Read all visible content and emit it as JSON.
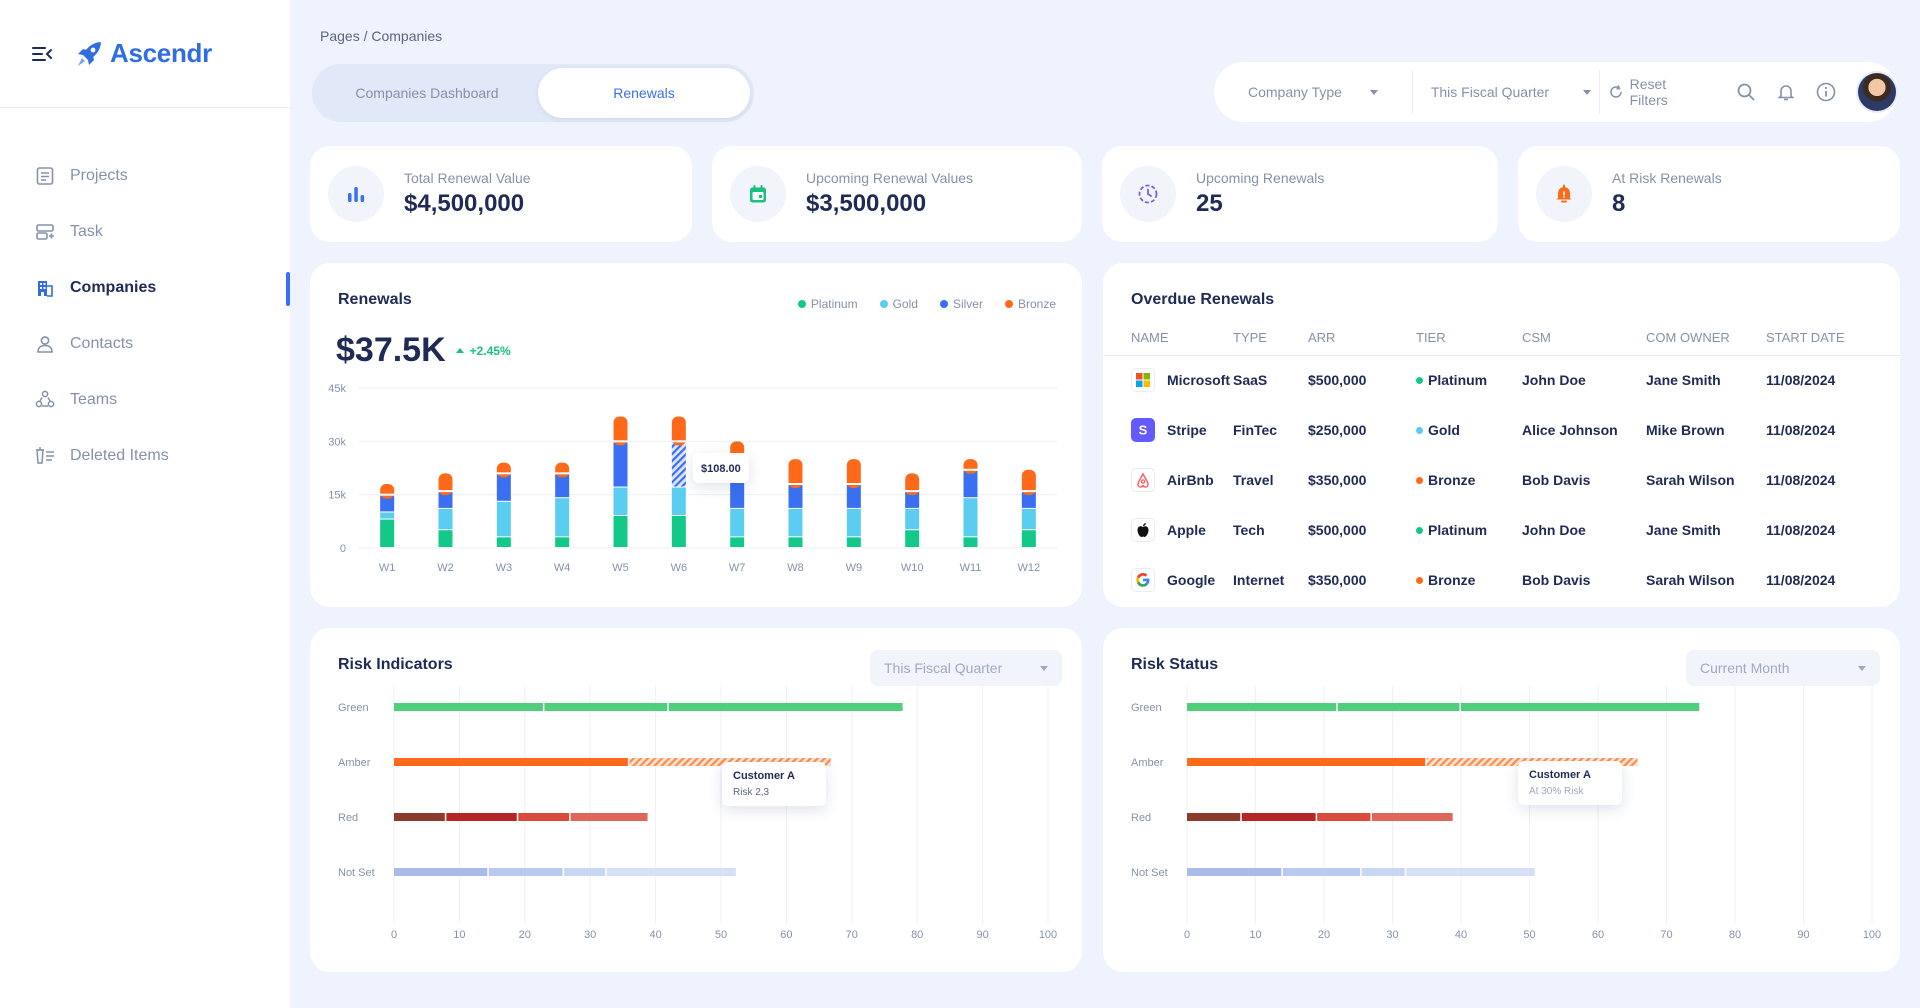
{
  "brand": {
    "name": "Ascendr"
  },
  "sidebar": {
    "items": [
      {
        "label": "Projects",
        "icon": "document-icon",
        "active": false
      },
      {
        "label": "Task",
        "icon": "task-icon",
        "active": false
      },
      {
        "label": "Companies",
        "icon": "building-icon",
        "active": true
      },
      {
        "label": "Contacts",
        "icon": "user-icon",
        "active": false
      },
      {
        "label": "Teams",
        "icon": "teams-icon",
        "active": false
      },
      {
        "label": "Deleted Items",
        "icon": "trash-list-icon",
        "active": false
      }
    ]
  },
  "header": {
    "breadcrumb": "Pages / Companies",
    "tabs": [
      {
        "label": "Companies Dashboard"
      },
      {
        "label": "Renewals"
      }
    ],
    "active_tab": "Renewals",
    "filters": {
      "company_type": "Company Type",
      "period": "This Fiscal Quarter",
      "reset": "Reset Filters"
    }
  },
  "stats": [
    {
      "label": "Total Renewal Value",
      "value": "$4,500,000",
      "icon": "bar-chart-icon",
      "color": "#3b6ff2"
    },
    {
      "label": "Upcoming Renewal Values",
      "value": "$3,500,000",
      "icon": "calendar-icon",
      "color": "#18c27c"
    },
    {
      "label": "Upcoming Renewals",
      "value": "25",
      "icon": "clock-icon",
      "color": "#7a5cf0"
    },
    {
      "label": "At Risk Renewals",
      "value": "8",
      "icon": "bell-icon",
      "color": "#ff6a1a"
    }
  ],
  "renewals": {
    "title": "Renewals",
    "total": "$37.5K",
    "delta": "+2.45%",
    "tooltip": "$108.00",
    "legend": [
      {
        "name": "Platinum",
        "color": "#12c98a"
      },
      {
        "name": "Gold",
        "color": "#5bcdf0"
      },
      {
        "name": "Silver",
        "color": "#3b6ff2"
      },
      {
        "name": "Bronze",
        "color": "#ff6a1a"
      }
    ]
  },
  "chart_data": [
    {
      "type": "bar",
      "stacked": true,
      "title": "Renewals",
      "categories": [
        "W1",
        "W2",
        "W3",
        "W4",
        "W5",
        "W6",
        "W7",
        "W8",
        "W9",
        "W10",
        "W11",
        "W12"
      ],
      "ytick_labels": [
        "0",
        "15k",
        "30k",
        "45k"
      ],
      "ylim": [
        0,
        45000
      ],
      "series": [
        {
          "name": "Platinum",
          "values": [
            8000,
            5000,
            3000,
            3000,
            9000,
            9000,
            3000,
            3000,
            3000,
            5000,
            3000,
            5000
          ]
        },
        {
          "name": "Gold",
          "values": [
            2000,
            6000,
            10000,
            11000,
            8000,
            8000,
            8000,
            8000,
            8000,
            6000,
            11000,
            6000
          ]
        },
        {
          "name": "Silver",
          "values": [
            5000,
            5000,
            8000,
            7000,
            13000,
            13000,
            13000,
            7000,
            7000,
            5000,
            8000,
            5000
          ]
        },
        {
          "name": "Bronze",
          "values": [
            3000,
            5000,
            3000,
            3000,
            7000,
            7000,
            6000,
            7000,
            7000,
            5000,
            3000,
            6000
          ]
        }
      ],
      "grid": true
    },
    {
      "type": "bar",
      "orientation": "horizontal",
      "title": "Risk Indicators",
      "categories": [
        "Green",
        "Amber",
        "Red",
        "Not Set"
      ],
      "xtick_labels": [
        "0",
        "10",
        "20",
        "30",
        "40",
        "50",
        "60",
        "70",
        "80",
        "90",
        "100"
      ],
      "xlim": [
        0,
        100
      ],
      "segments": [
        [
          23,
          19,
          36
        ],
        [
          36,
          31
        ],
        [
          8,
          11,
          8,
          12
        ],
        [
          14.5,
          11.5,
          6.5,
          20
        ]
      ],
      "tooltip": {
        "title": "Customer A",
        "subtitle": "Risk  2,3"
      }
    },
    {
      "type": "bar",
      "orientation": "horizontal",
      "title": "Risk Status",
      "categories": [
        "Green",
        "Amber",
        "Red",
        "Not Set"
      ],
      "xtick_labels": [
        "0",
        "10",
        "20",
        "30",
        "40",
        "50",
        "60",
        "70",
        "80",
        "90",
        "100"
      ],
      "xlim": [
        0,
        100
      ],
      "segments": [
        [
          22,
          18,
          35
        ],
        [
          35,
          31
        ],
        [
          8,
          11,
          8,
          12
        ],
        [
          14,
          11.5,
          6.5,
          19
        ]
      ],
      "tooltip": {
        "title": "Customer A",
        "subtitle": "At 30% Risk"
      }
    }
  ],
  "overdue": {
    "title": "Overdue Renewals",
    "columns": [
      "NAME",
      "TYPE",
      "ARR",
      "TIER",
      "CSM",
      "COM OWNER",
      "START DATE"
    ],
    "rows": [
      {
        "name": "Microsoft",
        "type": "SaaS",
        "arr": "$500,000",
        "tier": "Platinum",
        "tier_color": "#12c98a",
        "csm": "John Doe",
        "owner": "Jane Smith",
        "start": "11/08/2024",
        "logo": "microsoft-logo-icon"
      },
      {
        "name": "Stripe",
        "type": "FinTec",
        "arr": "$250,000",
        "tier": "Gold",
        "tier_color": "#5bcdf0",
        "csm": "Alice Johnson",
        "owner": "Mike Brown",
        "start": "11/08/2024",
        "logo": "stripe-logo-icon"
      },
      {
        "name": "AirBnb",
        "type": "Travel",
        "arr": "$350,000",
        "tier": "Bronze",
        "tier_color": "#ff6a1a",
        "csm": "Bob Davis",
        "owner": "Sarah Wilson",
        "start": "11/08/2024",
        "logo": "airbnb-logo-icon"
      },
      {
        "name": "Apple",
        "type": "Tech",
        "arr": "$500,000",
        "tier": "Platinum",
        "tier_color": "#12c98a",
        "csm": "John Doe",
        "owner": "Jane Smith",
        "start": "11/08/2024",
        "logo": "apple-logo-icon"
      },
      {
        "name": "Google",
        "type": "Internet",
        "arr": "$350,000",
        "tier": "Bronze",
        "tier_color": "#ff6a1a",
        "csm": "Bob Davis",
        "owner": "Sarah Wilson",
        "start": "11/08/2024",
        "logo": "google-logo-icon"
      }
    ]
  },
  "risk_indicators": {
    "title": "Risk Indicators",
    "dropdown": "This Fiscal Quarter"
  },
  "risk_status": {
    "title": "Risk Status",
    "dropdown": "Current Month"
  }
}
